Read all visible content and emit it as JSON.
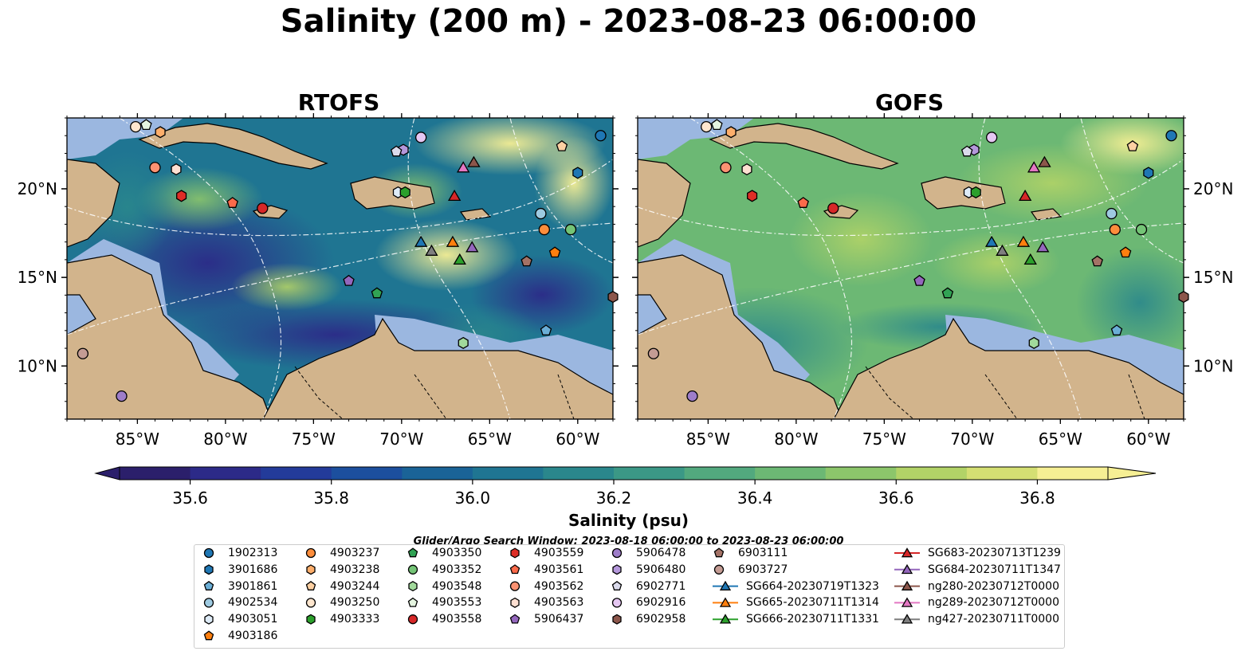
{
  "title": "Salinity (200 m) - 2023-08-23 06:00:00",
  "colors": {
    "land": "#d2b48c",
    "shelf_water": "#9bb7e0",
    "salinity_ramp": [
      "#2b1f6b",
      "#2c2a88",
      "#233b9a",
      "#1c4f9e",
      "#1a6397",
      "#1f7592",
      "#2a878c",
      "#3b9886",
      "#52a97e",
      "#6cb874",
      "#8cc66b",
      "#b2d367",
      "#d4df73",
      "#f6ef94"
    ]
  },
  "chart_data": {
    "type": "map",
    "panels": [
      {
        "name": "RTOFS"
      },
      {
        "name": "GOFS"
      }
    ],
    "lon_range": [
      -89,
      -58
    ],
    "lat_range": [
      7,
      24
    ],
    "x_ticks": [
      {
        "value": -85,
        "label": "85°W"
      },
      {
        "value": -80,
        "label": "80°W"
      },
      {
        "value": -75,
        "label": "75°W"
      },
      {
        "value": -70,
        "label": "70°W"
      },
      {
        "value": -65,
        "label": "65°W"
      },
      {
        "value": -60,
        "label": "60°W"
      }
    ],
    "y_ticks": [
      {
        "value": 10,
        "label": "10°N"
      },
      {
        "value": 15,
        "label": "15°N"
      },
      {
        "value": 20,
        "label": "20°N"
      }
    ],
    "colorbar": {
      "label": "Salinity (psu)",
      "min": 35.5,
      "max": 36.9,
      "extend": "both",
      "ticks": [
        {
          "value": 35.6,
          "label": "35.6"
        },
        {
          "value": 35.8,
          "label": "35.8"
        },
        {
          "value": 36.0,
          "label": "36.0"
        },
        {
          "value": 36.2,
          "label": "36.2"
        },
        {
          "value": 36.4,
          "label": "36.4"
        },
        {
          "value": 36.6,
          "label": "36.6"
        },
        {
          "value": 36.8,
          "label": "36.8"
        }
      ]
    },
    "search_window": "Glider/Argo Search Window: 2023-08-18 06:00:00 to 2023-08-23 06:00:00",
    "legend_columns": [
      [
        {
          "label": "1902313",
          "marker": "circle",
          "color": "#1f77b4"
        },
        {
          "label": "3901686",
          "marker": "hexagon",
          "color": "#1f77b4"
        },
        {
          "label": "3901861",
          "marker": "pentagon",
          "color": "#6baed6"
        },
        {
          "label": "4902534",
          "marker": "circle",
          "color": "#9ecae1"
        },
        {
          "label": "4903051",
          "marker": "hexagon",
          "color": "#deebf7"
        },
        {
          "label": "4903186",
          "marker": "pentagon",
          "color": "#ff7f0e"
        }
      ],
      [
        {
          "label": "4903237",
          "marker": "circle",
          "color": "#fd8d3c"
        },
        {
          "label": "4903238",
          "marker": "hexagon",
          "color": "#fdae6b"
        },
        {
          "label": "4903244",
          "marker": "pentagon",
          "color": "#fdd0a2"
        },
        {
          "label": "4903250",
          "marker": "circle",
          "color": "#fee6ce"
        },
        {
          "label": "4903333",
          "marker": "hexagon",
          "color": "#2ca02c"
        }
      ],
      [
        {
          "label": "4903350",
          "marker": "pentagon",
          "color": "#31a354"
        },
        {
          "label": "4903352",
          "marker": "circle",
          "color": "#74c476"
        },
        {
          "label": "4903548",
          "marker": "hexagon",
          "color": "#a1d99b"
        },
        {
          "label": "4903553",
          "marker": "pentagon",
          "color": "#e5f5e0"
        },
        {
          "label": "4903558",
          "marker": "circle",
          "color": "#d62728"
        }
      ],
      [
        {
          "label": "4903559",
          "marker": "hexagon",
          "color": "#de2d26"
        },
        {
          "label": "4903561",
          "marker": "pentagon",
          "color": "#fb6a4a"
        },
        {
          "label": "4903562",
          "marker": "circle",
          "color": "#fc9272"
        },
        {
          "label": "4903563",
          "marker": "hexagon",
          "color": "#fee0d2"
        },
        {
          "label": "5906437",
          "marker": "pentagon",
          "color": "#9467bd"
        }
      ],
      [
        {
          "label": "5906478",
          "marker": "circle",
          "color": "#9e7dc9"
        },
        {
          "label": "5906480",
          "marker": "hexagon",
          "color": "#b497db"
        },
        {
          "label": "6902771",
          "marker": "pentagon",
          "color": "#dadaeb"
        },
        {
          "label": "6902916",
          "marker": "circle",
          "color": "#e5c7f2"
        },
        {
          "label": "6902958",
          "marker": "hexagon",
          "color": "#8c564b"
        }
      ],
      [
        {
          "label": "6903111",
          "marker": "pentagon",
          "color": "#a47266"
        },
        {
          "label": "6903727",
          "marker": "circle",
          "color": "#c49c94"
        },
        {
          "label": "SG664-20230719T1323",
          "marker": "triangle",
          "color": "#1f77b4",
          "line": true
        },
        {
          "label": "SG665-20230711T1314",
          "marker": "triangle",
          "color": "#ff7f0e",
          "line": true
        },
        {
          "label": "SG666-20230711T1331",
          "marker": "triangle",
          "color": "#2ca02c",
          "line": true
        }
      ],
      [
        {
          "label": "SG683-20230713T1239",
          "marker": "triangle",
          "color": "#d62728",
          "line": true
        },
        {
          "label": "SG684-20230711T1347",
          "marker": "triangle",
          "color": "#9467bd",
          "line": true
        },
        {
          "label": "ng280-20230712T0000",
          "marker": "triangle",
          "color": "#8c564b",
          "line": true
        },
        {
          "label": "ng289-20230712T0000",
          "marker": "triangle",
          "color": "#e377c2",
          "line": true
        },
        {
          "label": "ng427-20230711T0000",
          "marker": "triangle",
          "color": "#7f7f7f",
          "line": true
        }
      ]
    ],
    "platforms": [
      {
        "id": "1902313",
        "lon": -58.7,
        "lat": 23.0
      },
      {
        "id": "3901686",
        "lon": -60.0,
        "lat": 20.9
      },
      {
        "id": "3901861",
        "lon": -61.8,
        "lat": 12.0
      },
      {
        "id": "4902534",
        "lon": -62.1,
        "lat": 18.6
      },
      {
        "id": "4903051",
        "lon": -70.2,
        "lat": 19.8
      },
      {
        "id": "4903186",
        "lon": -61.3,
        "lat": 16.4
      },
      {
        "id": "4903237",
        "lon": -61.9,
        "lat": 17.7
      },
      {
        "id": "4903238",
        "lon": -83.7,
        "lat": 23.2
      },
      {
        "id": "4903244",
        "lon": -60.9,
        "lat": 22.4
      },
      {
        "id": "4903250",
        "lon": -85.1,
        "lat": 23.5
      },
      {
        "id": "4903333",
        "lon": -69.8,
        "lat": 19.8
      },
      {
        "id": "4903350",
        "lon": -71.4,
        "lat": 14.1
      },
      {
        "id": "4903352",
        "lon": -60.4,
        "lat": 17.7
      },
      {
        "id": "4903548",
        "lon": -66.5,
        "lat": 11.3
      },
      {
        "id": "4903553",
        "lon": -84.5,
        "lat": 23.6
      },
      {
        "id": "4903558",
        "lon": -77.9,
        "lat": 18.9
      },
      {
        "id": "4903559",
        "lon": -82.5,
        "lat": 19.6
      },
      {
        "id": "4903561",
        "lon": -79.6,
        "lat": 19.2
      },
      {
        "id": "4903562",
        "lon": -84.0,
        "lat": 21.2
      },
      {
        "id": "4903563",
        "lon": -82.8,
        "lat": 21.1
      },
      {
        "id": "5906437",
        "lon": -73.0,
        "lat": 14.8
      },
      {
        "id": "5906478",
        "lon": -85.9,
        "lat": 8.3
      },
      {
        "id": "5906480",
        "lon": -69.9,
        "lat": 22.2
      },
      {
        "id": "6902771",
        "lon": -70.3,
        "lat": 22.1
      },
      {
        "id": "6902916",
        "lon": -68.9,
        "lat": 22.9
      },
      {
        "id": "6902958",
        "lon": -58.0,
        "lat": 13.9
      },
      {
        "id": "6903111",
        "lon": -62.9,
        "lat": 15.9
      },
      {
        "id": "6903727",
        "lon": -88.1,
        "lat": 10.7
      },
      {
        "id": "SG664-20230719T1323",
        "lon": -68.9,
        "lat": 17.0
      },
      {
        "id": "SG665-20230711T1314",
        "lon": -67.1,
        "lat": 17.0
      },
      {
        "id": "SG666-20230711T1331",
        "lon": -66.7,
        "lat": 16.0
      },
      {
        "id": "SG683-20230713T1239",
        "lon": -67.0,
        "lat": 19.6
      },
      {
        "id": "SG684-20230711T1347",
        "lon": -66.0,
        "lat": 16.7
      },
      {
        "id": "ng280-20230712T0000",
        "lon": -65.9,
        "lat": 21.5
      },
      {
        "id": "ng289-20230712T0000",
        "lon": -66.5,
        "lat": 21.2
      },
      {
        "id": "ng427-20230711T0000",
        "lon": -68.3,
        "lat": 16.5
      }
    ]
  }
}
